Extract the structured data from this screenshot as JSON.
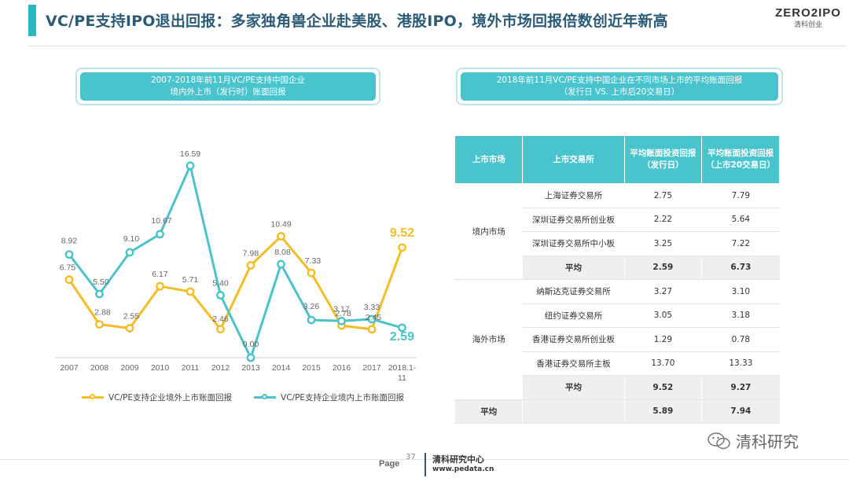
{
  "header": {
    "title": "VC/PE支持IPO退出回报：多家独角兽企业赴美股、港股IPO，境外市场回报倍数创近年新高",
    "logo_main": "ZERO2IPO",
    "logo_sub": "清科创业"
  },
  "left_box": {
    "line1": "2007-2018年前11月VC/PE支持中国企业",
    "line2": "境内外上市（发行时）账面回报"
  },
  "right_box": {
    "line1": "2018年前11月VC/PE支持中国企业在不同市场上市的平均账面回报",
    "line2": "（发行日 VS. 上市后20交易日）"
  },
  "chart_data": {
    "type": "line",
    "categories": [
      "2007",
      "2008",
      "2009",
      "2010",
      "2011",
      "2012",
      "2013",
      "2014",
      "2015",
      "2016",
      "2017",
      "2018.1-11"
    ],
    "series": [
      {
        "name": "VC/PE支持企业境外上市账面回报",
        "color": "#f2bd25",
        "values": [
          6.75,
          2.88,
          2.55,
          6.17,
          5.71,
          2.46,
          7.98,
          10.49,
          7.33,
          2.78,
          2.45,
          9.52
        ],
        "labels": [
          "6.75",
          "2.88",
          "2.55",
          "6.17",
          "5.71",
          "2.46",
          "7.98",
          "10.49",
          "7.33",
          "2.78",
          "2.45",
          "9.52"
        ]
      },
      {
        "name": "VC/PE支持企业境内上市账面回报",
        "color": "#4cc3c9",
        "values": [
          8.92,
          5.5,
          9.1,
          10.67,
          16.59,
          5.4,
          0.0,
          8.08,
          3.26,
          3.17,
          3.33,
          2.59
        ],
        "labels": [
          "8.92",
          "5.50",
          "9.10",
          "10.67",
          "16.59",
          "5.40",
          "0.00",
          "8.08",
          "3.26",
          "3.17",
          "3.33",
          "2.59"
        ]
      }
    ],
    "ylim": [
      0,
      18
    ]
  },
  "table": {
    "headers": [
      "上市市场",
      "上市交易所",
      "平均账面投资回报\n（发行日）",
      "平均账面投资回报\n（上市20交易日）"
    ],
    "groups": [
      {
        "market": "境内市场",
        "rows": [
          {
            "exchange": "上海证券交易所",
            "v1": "2.75",
            "v2": "7.79"
          },
          {
            "exchange": "深圳证券交易所创业板",
            "v1": "2.22",
            "v2": "5.64"
          },
          {
            "exchange": "深圳证券交易所中小板",
            "v1": "3.25",
            "v2": "7.22"
          }
        ],
        "avg": {
          "label": "平均",
          "v1": "2.59",
          "v2": "6.73"
        }
      },
      {
        "market": "海外市场",
        "rows": [
          {
            "exchange": "纳斯达克证券交易所",
            "v1": "3.27",
            "v2": "3.10"
          },
          {
            "exchange": "纽约证券交易所",
            "v1": "3.05",
            "v2": "3.18"
          },
          {
            "exchange": "香港证券交易所创业板",
            "v1": "1.29",
            "v2": "0.78"
          },
          {
            "exchange": "香港证券交易所主板",
            "v1": "13.70",
            "v2": "13.33"
          }
        ],
        "avg": {
          "label": "平均",
          "v1": "9.52",
          "v2": "9.27"
        }
      }
    ],
    "total": {
      "label": "平均",
      "v1": "5.89",
      "v2": "7.94"
    }
  },
  "footer": {
    "page_label": "Page",
    "page_number": "37",
    "org": "清科研究中心",
    "url": "www.pedata.cn",
    "watermark": "清科研究"
  },
  "colors": {
    "accent": "#2bb7c2",
    "title": "#2c5b76",
    "teal": "#49c3cc",
    "yellow": "#f2bd25"
  }
}
